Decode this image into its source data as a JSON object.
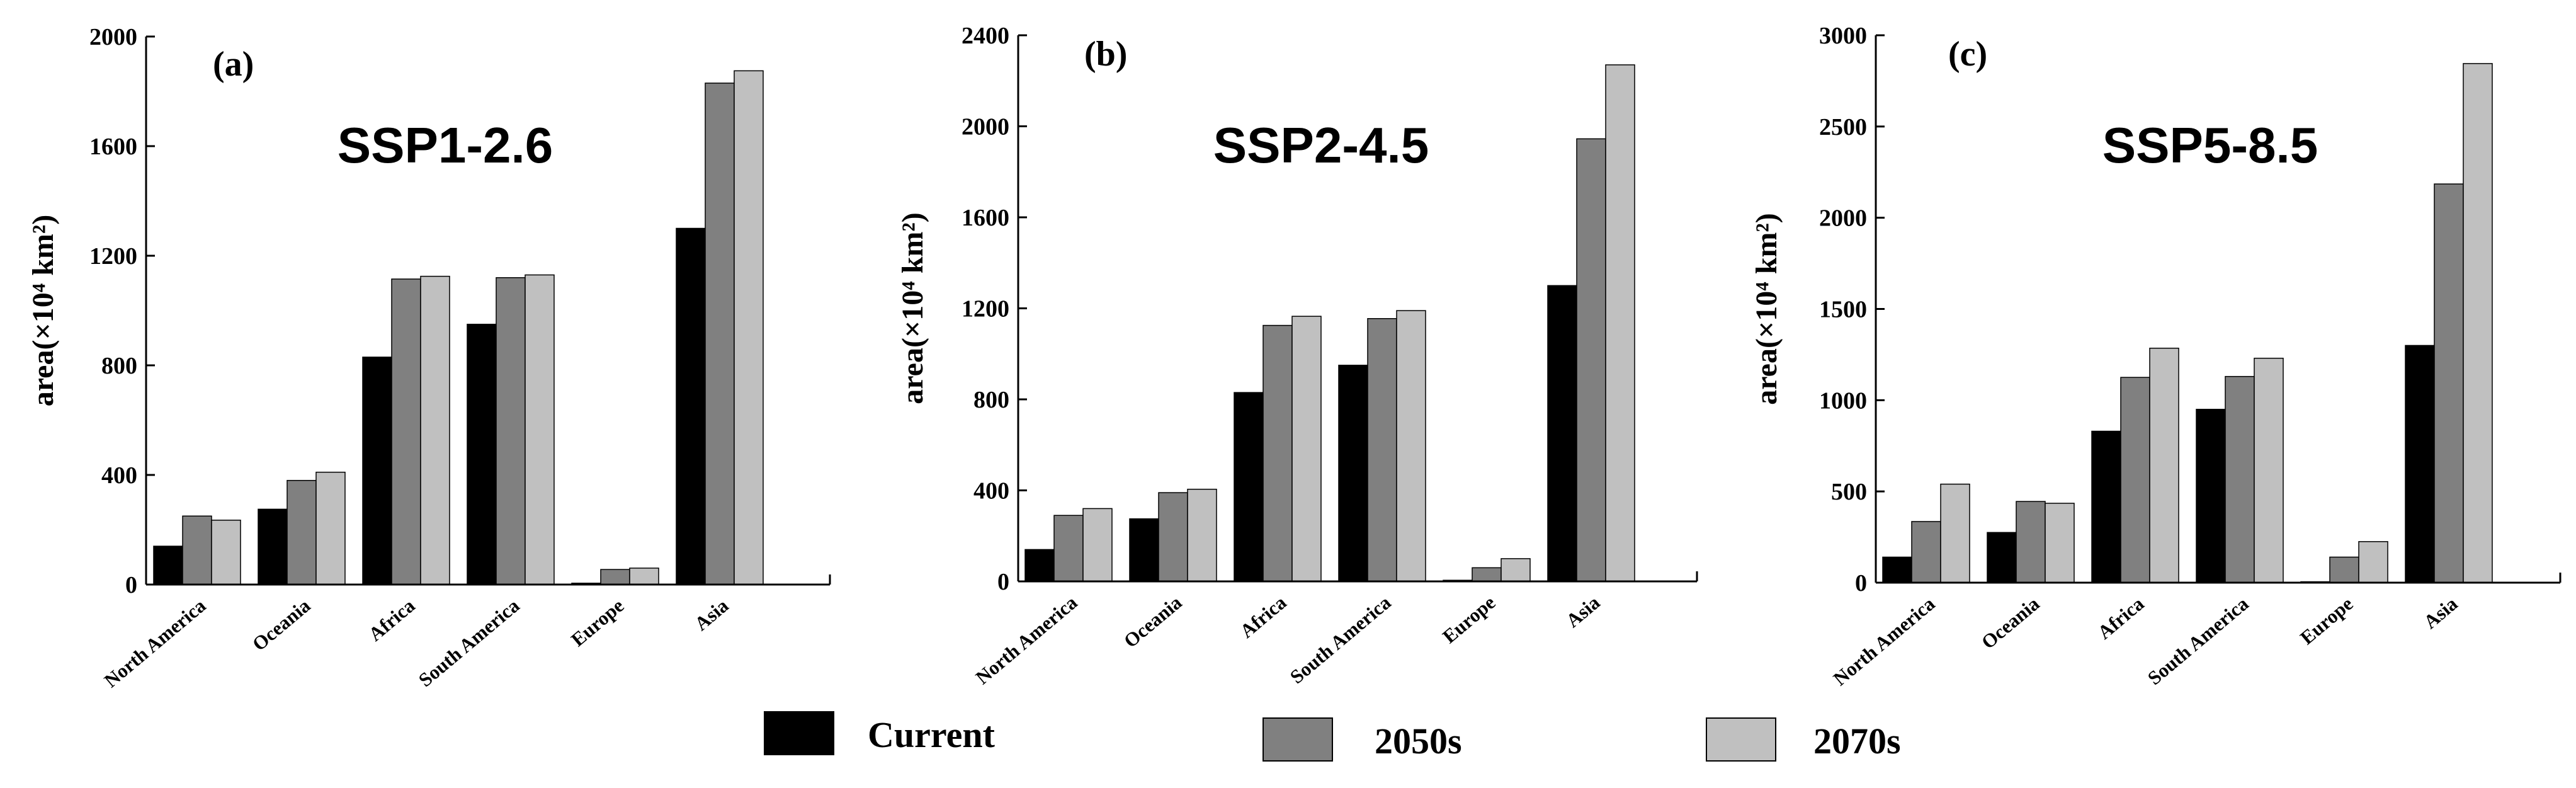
{
  "chart_data": [
    {
      "type": "bar",
      "panel": "(a)",
      "title": "SSP1-2.6",
      "ylabel": "area(×10⁴ km²)",
      "xlabel": "",
      "ylim": [
        0,
        2000
      ],
      "yticks": [
        0,
        400,
        800,
        1200,
        1600,
        2000
      ],
      "categories": [
        "North America",
        "Oceania",
        "Africa",
        "South America",
        "Europe",
        "Asia"
      ],
      "series": [
        {
          "name": "Current",
          "values": [
            140,
            275,
            830,
            950,
            5,
            1300
          ]
        },
        {
          "name": "2050s",
          "values": [
            250,
            380,
            1115,
            1120,
            55,
            1830
          ]
        },
        {
          "name": "2070s",
          "values": [
            235,
            410,
            1125,
            1130,
            60,
            1875
          ]
        }
      ]
    },
    {
      "type": "bar",
      "panel": "(b)",
      "title": "SSP2-4.5",
      "ylabel": "area(×10⁴ km²)",
      "xlabel": "",
      "ylim": [
        0,
        2400
      ],
      "yticks": [
        0,
        400,
        800,
        1200,
        1600,
        2000,
        2400
      ],
      "categories": [
        "North America",
        "Oceania",
        "Africa",
        "South America",
        "Europe",
        "Asia"
      ],
      "series": [
        {
          "name": "Current",
          "values": [
            140,
            275,
            830,
            950,
            5,
            1300
          ]
        },
        {
          "name": "2050s",
          "values": [
            290,
            390,
            1125,
            1155,
            60,
            1945
          ]
        },
        {
          "name": "2070s",
          "values": [
            320,
            405,
            1165,
            1190,
            100,
            2270
          ]
        }
      ]
    },
    {
      "type": "bar",
      "panel": "(c)",
      "title": "SSP5-8.5",
      "ylabel": "area(×10⁴ km²)",
      "xlabel": "",
      "ylim": [
        0,
        3000
      ],
      "yticks": [
        0,
        500,
        1000,
        1500,
        2000,
        2500,
        3000
      ],
      "categories": [
        "North America",
        "Oceania",
        "Africa",
        "South America",
        "Europe",
        "Asia"
      ],
      "series": [
        {
          "name": "Current",
          "values": [
            140,
            275,
            830,
            950,
            5,
            1300
          ]
        },
        {
          "name": "2050s",
          "values": [
            335,
            445,
            1125,
            1130,
            140,
            2185
          ]
        },
        {
          "name": "2070s",
          "values": [
            540,
            435,
            1285,
            1230,
            225,
            2845
          ]
        }
      ]
    }
  ],
  "legend": [
    {
      "name": "Current",
      "color": "#000000"
    },
    {
      "name": "2050s",
      "color": "#808080"
    },
    {
      "name": "2070s",
      "color": "#c0c0c0"
    }
  ],
  "colors": {
    "Current": "#000000",
    "2050s": "#808080",
    "2070s": "#c0c0c0",
    "axis": "#000000"
  }
}
